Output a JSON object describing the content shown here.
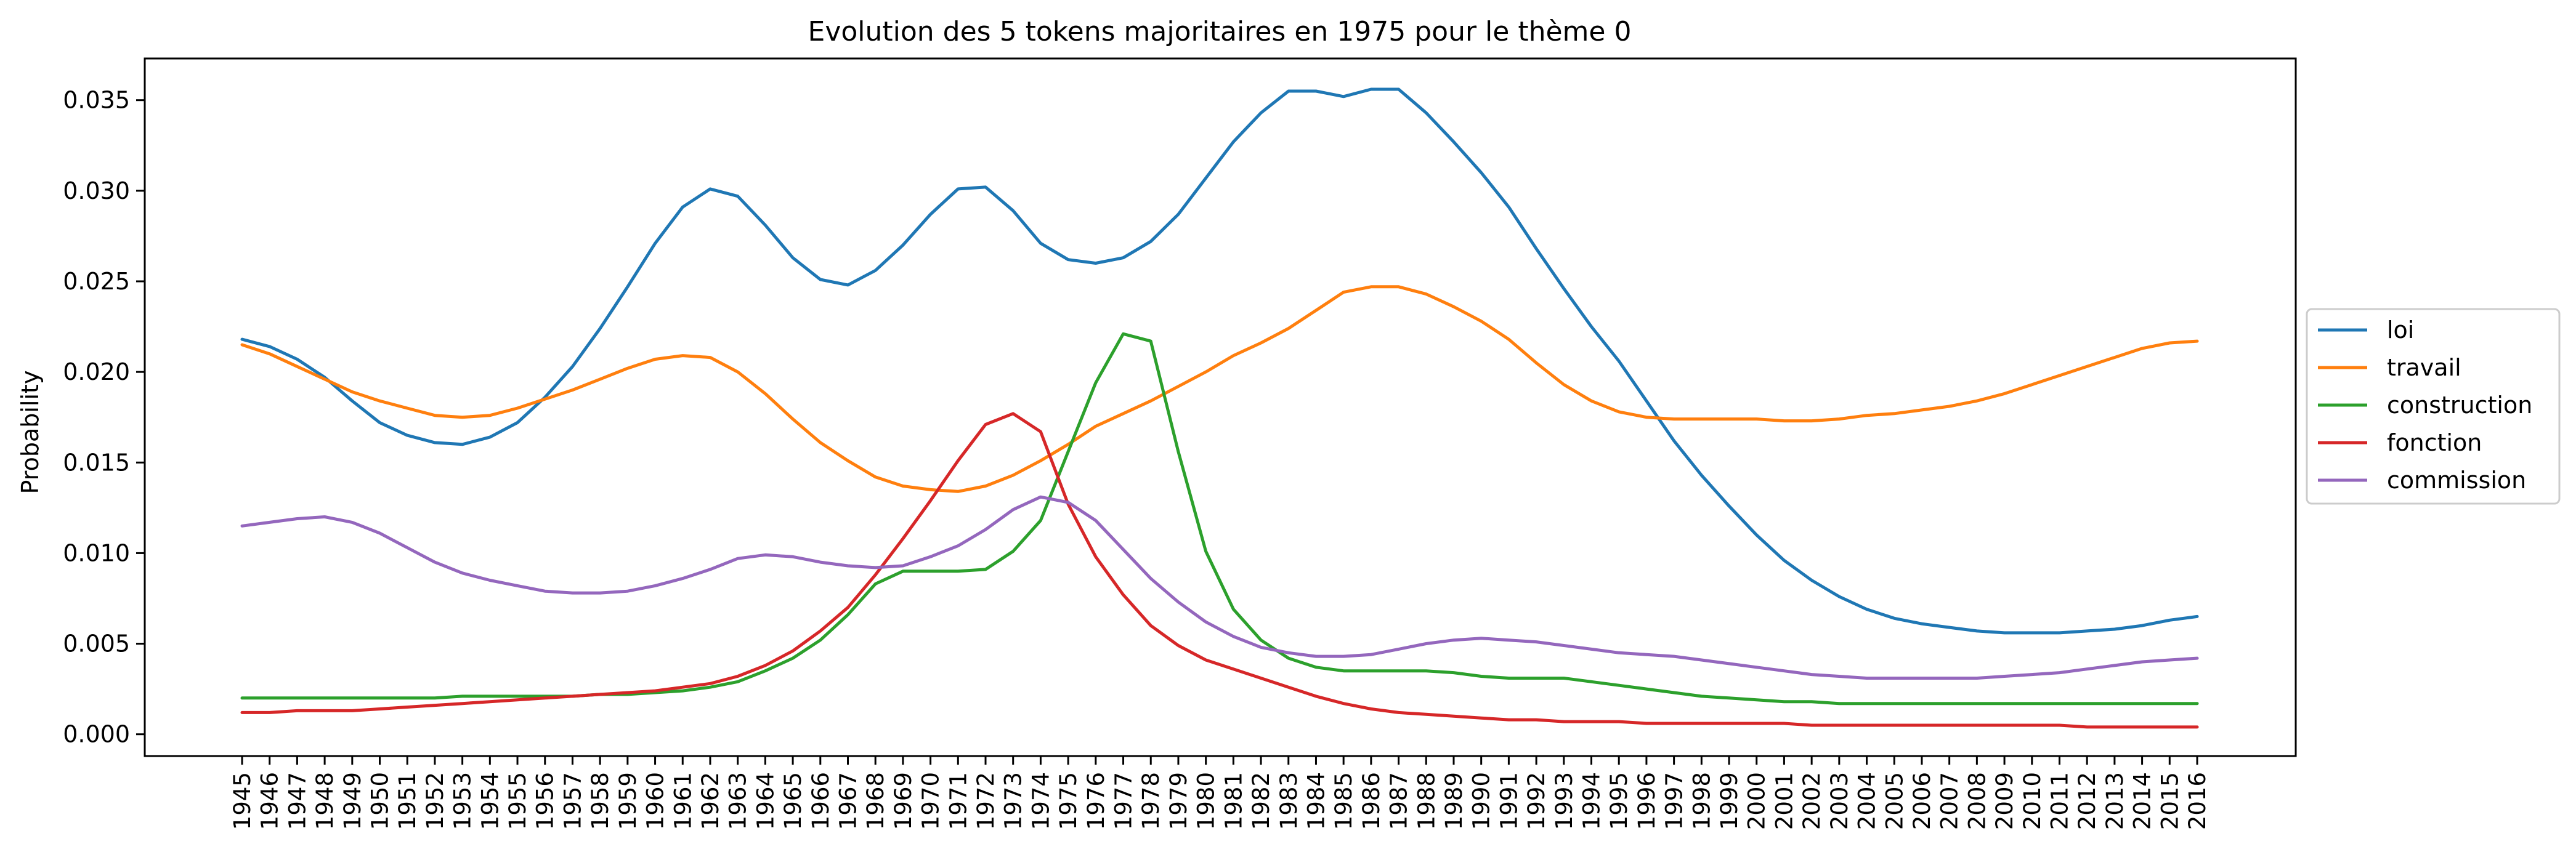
{
  "chart_data": {
    "type": "line",
    "title": "Evolution des 5 tokens majoritaires en 1975 pour le thème 0",
    "ylabel": "Probability",
    "xlabel": "",
    "ylim": [
      -0.0012,
      0.0373
    ],
    "y_ticks": [
      "0.000",
      "0.005",
      "0.010",
      "0.015",
      "0.020",
      "0.025",
      "0.030",
      "0.035"
    ],
    "y_tick_values": [
      0,
      0.005,
      0.01,
      0.015,
      0.02,
      0.025,
      0.03,
      0.035
    ],
    "x": [
      "1945",
      "1946",
      "1947",
      "1948",
      "1949",
      "1950",
      "1951",
      "1952",
      "1953",
      "1954",
      "1955",
      "1956",
      "1957",
      "1958",
      "1959",
      "1960",
      "1961",
      "1962",
      "1963",
      "1964",
      "1965",
      "1966",
      "1967",
      "1968",
      "1969",
      "1970",
      "1971",
      "1972",
      "1973",
      "1974",
      "1975",
      "1976",
      "1977",
      "1978",
      "1979",
      "1980",
      "1981",
      "1982",
      "1983",
      "1984",
      "1985",
      "1986",
      "1987",
      "1988",
      "1989",
      "1990",
      "1991",
      "1992",
      "1993",
      "1994",
      "1995",
      "1996",
      "1997",
      "1998",
      "1999",
      "2000",
      "2001",
      "2002",
      "2003",
      "2004",
      "2005",
      "2006",
      "2007",
      "2008",
      "2009",
      "2010",
      "2011",
      "2012",
      "2013",
      "2014",
      "2015",
      "2016"
    ],
    "legend_position": "right-center",
    "grid": false,
    "series": [
      {
        "name": "loi",
        "color": "#1f77b4",
        "values": [
          0.0218,
          0.0214,
          0.0207,
          0.0197,
          0.0184,
          0.0172,
          0.0165,
          0.0161,
          0.016,
          0.0164,
          0.0172,
          0.0186,
          0.0203,
          0.0224,
          0.0247,
          0.0271,
          0.0291,
          0.0301,
          0.0297,
          0.0281,
          0.0263,
          0.0251,
          0.0248,
          0.0256,
          0.027,
          0.0287,
          0.0301,
          0.0302,
          0.0289,
          0.0271,
          0.0262,
          0.026,
          0.0263,
          0.0272,
          0.0287,
          0.0307,
          0.0327,
          0.0343,
          0.0355,
          0.0355,
          0.0352,
          0.0356,
          0.0356,
          0.0343,
          0.0327,
          0.031,
          0.0291,
          0.0268,
          0.0246,
          0.0225,
          0.0206,
          0.0184,
          0.0162,
          0.0143,
          0.0126,
          0.011,
          0.0096,
          0.0085,
          0.0076,
          0.0069,
          0.0064,
          0.0061,
          0.0059,
          0.0057,
          0.0056,
          0.0056,
          0.0056,
          0.0057,
          0.0058,
          0.006,
          0.0063,
          0.0065
        ]
      },
      {
        "name": "travail",
        "color": "#ff7f0e",
        "values": [
          0.0215,
          0.021,
          0.0203,
          0.0196,
          0.0189,
          0.0184,
          0.018,
          0.0176,
          0.0175,
          0.0176,
          0.018,
          0.0185,
          0.019,
          0.0196,
          0.0202,
          0.0207,
          0.0209,
          0.0208,
          0.02,
          0.0188,
          0.0174,
          0.0161,
          0.0151,
          0.0142,
          0.0137,
          0.0135,
          0.0134,
          0.0137,
          0.0143,
          0.0151,
          0.016,
          0.017,
          0.0177,
          0.0184,
          0.0192,
          0.02,
          0.0209,
          0.0216,
          0.0224,
          0.0234,
          0.0244,
          0.0247,
          0.0247,
          0.0243,
          0.0236,
          0.0228,
          0.0218,
          0.0205,
          0.0193,
          0.0184,
          0.0178,
          0.0175,
          0.0174,
          0.0174,
          0.0174,
          0.0174,
          0.0173,
          0.0173,
          0.0174,
          0.0176,
          0.0177,
          0.0179,
          0.0181,
          0.0184,
          0.0188,
          0.0193,
          0.0198,
          0.0203,
          0.0208,
          0.0213,
          0.0216,
          0.0217
        ]
      },
      {
        "name": "construction",
        "color": "#2ca02c",
        "values": [
          0.002,
          0.002,
          0.002,
          0.002,
          0.002,
          0.002,
          0.002,
          0.002,
          0.0021,
          0.0021,
          0.0021,
          0.0021,
          0.0021,
          0.0022,
          0.0022,
          0.0023,
          0.0024,
          0.0026,
          0.0029,
          0.0035,
          0.0042,
          0.0052,
          0.0066,
          0.0083,
          0.009,
          0.009,
          0.009,
          0.0091,
          0.0101,
          0.0118,
          0.0156,
          0.0194,
          0.0221,
          0.0217,
          0.0156,
          0.0101,
          0.0069,
          0.0052,
          0.0042,
          0.0037,
          0.0035,
          0.0035,
          0.0035,
          0.0035,
          0.0034,
          0.0032,
          0.0031,
          0.0031,
          0.0031,
          0.0029,
          0.0027,
          0.0025,
          0.0023,
          0.0021,
          0.002,
          0.0019,
          0.0018,
          0.0018,
          0.0017,
          0.0017,
          0.0017,
          0.0017,
          0.0017,
          0.0017,
          0.0017,
          0.0017,
          0.0017,
          0.0017,
          0.0017,
          0.0017,
          0.0017,
          0.0017
        ]
      },
      {
        "name": "fonction",
        "color": "#d62728",
        "values": [
          0.0012,
          0.0012,
          0.0013,
          0.0013,
          0.0013,
          0.0014,
          0.0015,
          0.0016,
          0.0017,
          0.0018,
          0.0019,
          0.002,
          0.0021,
          0.0022,
          0.0023,
          0.0024,
          0.0026,
          0.0028,
          0.0032,
          0.0038,
          0.0046,
          0.0057,
          0.007,
          0.0088,
          0.0108,
          0.0129,
          0.0151,
          0.0171,
          0.0177,
          0.0167,
          0.0127,
          0.0098,
          0.0077,
          0.006,
          0.0049,
          0.0041,
          0.0036,
          0.0031,
          0.0026,
          0.0021,
          0.0017,
          0.0014,
          0.0012,
          0.0011,
          0.001,
          0.0009,
          0.0008,
          0.0008,
          0.0007,
          0.0007,
          0.0007,
          0.0006,
          0.0006,
          0.0006,
          0.0006,
          0.0006,
          0.0006,
          0.0005,
          0.0005,
          0.0005,
          0.0005,
          0.0005,
          0.0005,
          0.0005,
          0.0005,
          0.0005,
          0.0005,
          0.0004,
          0.0004,
          0.0004,
          0.0004,
          0.0004
        ]
      },
      {
        "name": "commission",
        "color": "#9467bd",
        "values": [
          0.0115,
          0.0117,
          0.0119,
          0.012,
          0.0117,
          0.0111,
          0.0103,
          0.0095,
          0.0089,
          0.0085,
          0.0082,
          0.0079,
          0.0078,
          0.0078,
          0.0079,
          0.0082,
          0.0086,
          0.0091,
          0.0097,
          0.0099,
          0.0098,
          0.0095,
          0.0093,
          0.0092,
          0.0093,
          0.0098,
          0.0104,
          0.0113,
          0.0124,
          0.0131,
          0.0128,
          0.0118,
          0.0102,
          0.0086,
          0.0073,
          0.0062,
          0.0054,
          0.0048,
          0.0045,
          0.0043,
          0.0043,
          0.0044,
          0.0047,
          0.005,
          0.0052,
          0.0053,
          0.0052,
          0.0051,
          0.0049,
          0.0047,
          0.0045,
          0.0044,
          0.0043,
          0.0041,
          0.0039,
          0.0037,
          0.0035,
          0.0033,
          0.0032,
          0.0031,
          0.0031,
          0.0031,
          0.0031,
          0.0031,
          0.0032,
          0.0033,
          0.0034,
          0.0036,
          0.0038,
          0.004,
          0.0041,
          0.0042
        ]
      }
    ]
  }
}
